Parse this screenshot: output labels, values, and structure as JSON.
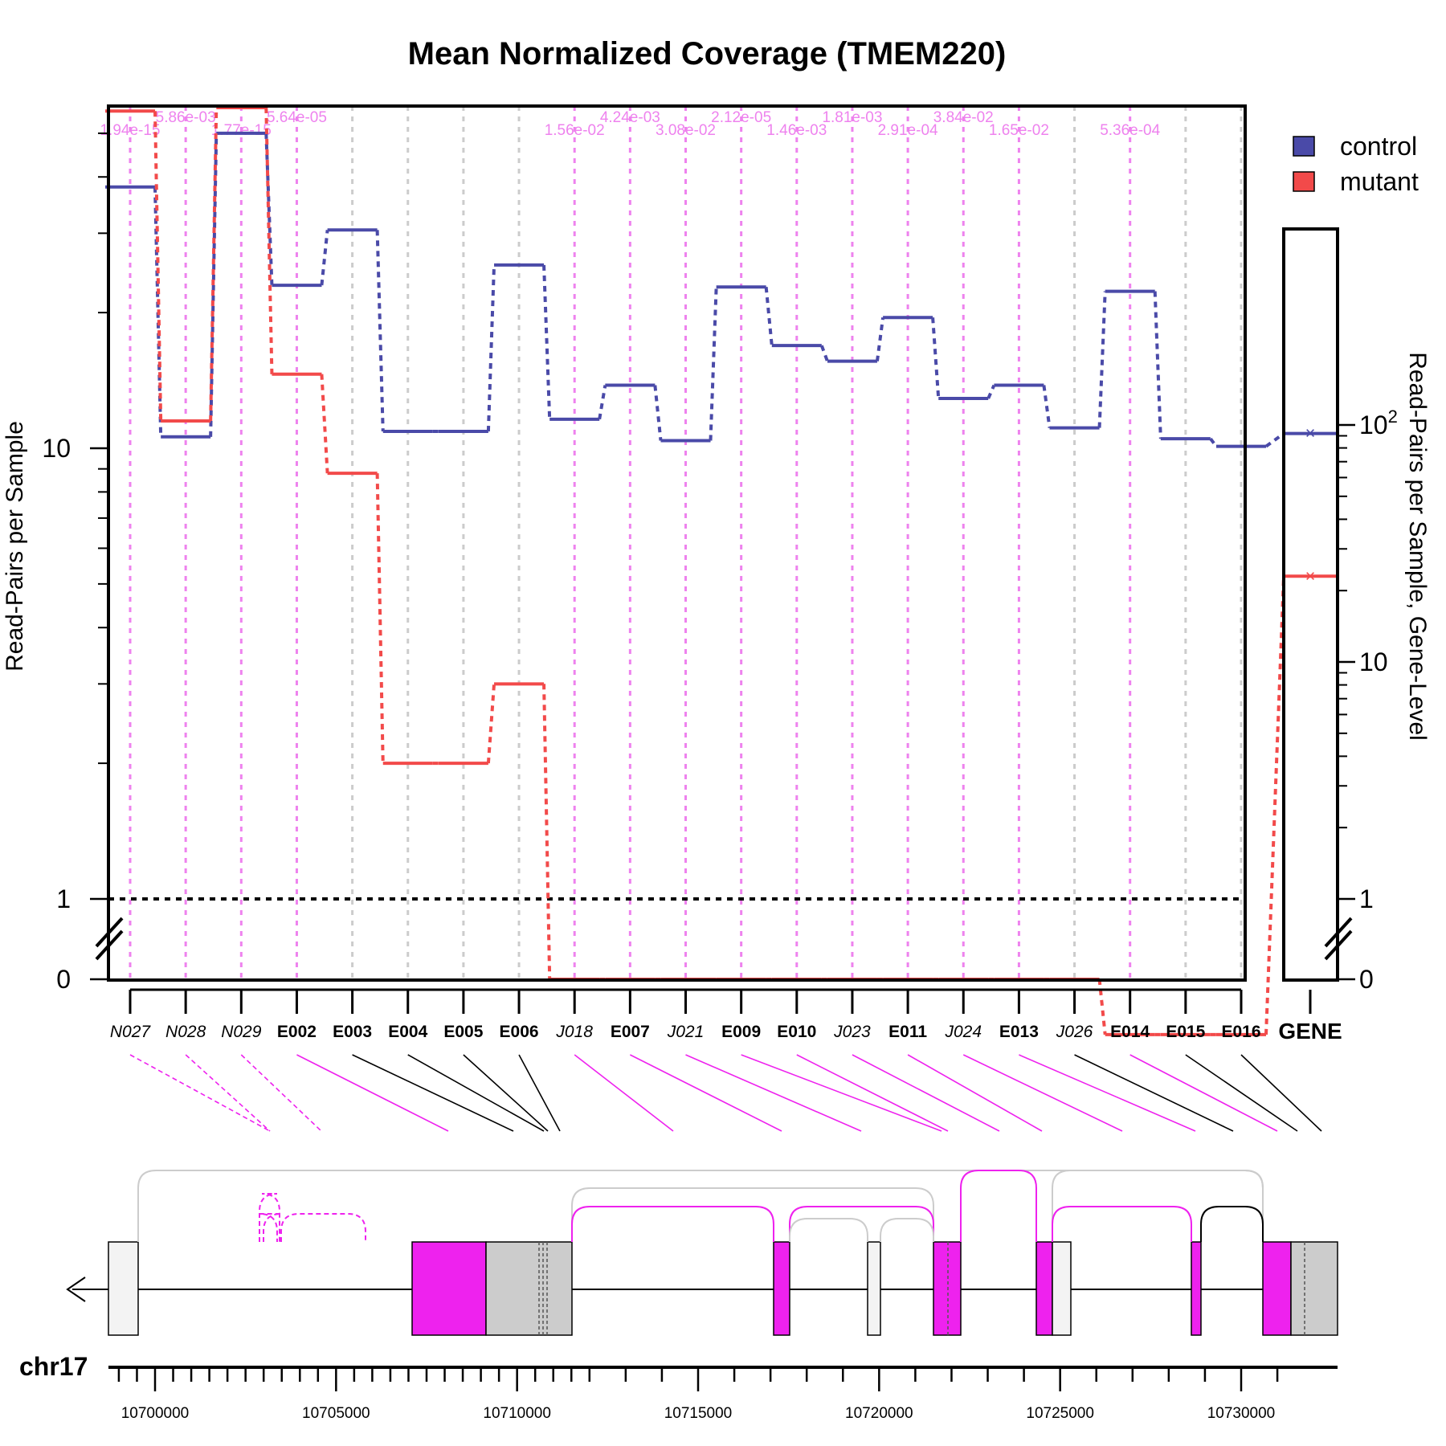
{
  "chart_data": {
    "type": "line",
    "title": "Mean Normalized Coverage (TMEM220)",
    "ylabel": "Read-Pairs per Sample",
    "ylabel_right": "Read-Pairs per Sample, Gene-Level",
    "yscale": "log with 0 below axis break",
    "ylim": [
      0,
      60
    ],
    "main_ticks": [
      {
        "label": "0",
        "value": 0
      },
      {
        "label": "1",
        "value": 1
      },
      {
        "label": "10",
        "value": 10
      }
    ],
    "gene_ticks": [
      {
        "label": "0",
        "value": 0
      },
      {
        "label": "1",
        "value": 1
      },
      {
        "label": "10",
        "value": 10
      },
      {
        "label": "10",
        "sup": "2",
        "value": 100
      }
    ],
    "grid": true,
    "legend": {
      "position": "top-right",
      "entries": [
        {
          "name": "control",
          "color": "#4a4aa8"
        },
        {
          "name": "mutant",
          "color": "#f24a4a"
        }
      ]
    },
    "one_line_color": "#000000",
    "significant_color": "#ee82ee",
    "nonsignificant_color": "#cccccc",
    "features": [
      {
        "id": "N027",
        "kind": "novel",
        "pvalue": "1.94e-15",
        "significant": true
      },
      {
        "id": "N028",
        "kind": "novel",
        "pvalue": "5.86e-03",
        "significant": true
      },
      {
        "id": "N029",
        "kind": "novel",
        "pvalue": "1.77e-15",
        "significant": true
      },
      {
        "id": "E002",
        "kind": "exon",
        "pvalue": "5.64e-05",
        "significant": true
      },
      {
        "id": "E003",
        "kind": "exon",
        "pvalue": "",
        "significant": false
      },
      {
        "id": "E004",
        "kind": "exon",
        "pvalue": "",
        "significant": false
      },
      {
        "id": "E005",
        "kind": "exon",
        "pvalue": "",
        "significant": false
      },
      {
        "id": "E006",
        "kind": "exon",
        "pvalue": "",
        "significant": false
      },
      {
        "id": "J018",
        "kind": "junction",
        "pvalue": "1.56e-02",
        "significant": true
      },
      {
        "id": "E007",
        "kind": "exon",
        "pvalue": "4.24e-03",
        "significant": true
      },
      {
        "id": "J021",
        "kind": "junction",
        "pvalue": "3.08e-02",
        "significant": true
      },
      {
        "id": "E009",
        "kind": "exon",
        "pvalue": "2.12e-05",
        "significant": true
      },
      {
        "id": "E010",
        "kind": "exon",
        "pvalue": "1.46e-03",
        "significant": true
      },
      {
        "id": "J023",
        "kind": "junction",
        "pvalue": "1.81e-03",
        "significant": true
      },
      {
        "id": "E011",
        "kind": "exon",
        "pvalue": "2.91e-04",
        "significant": true
      },
      {
        "id": "J024",
        "kind": "junction",
        "pvalue": "3.84e-02",
        "significant": true
      },
      {
        "id": "E013",
        "kind": "exon",
        "pvalue": "1.65e-02",
        "significant": true
      },
      {
        "id": "J026",
        "kind": "junction",
        "pvalue": "",
        "significant": false
      },
      {
        "id": "E014",
        "kind": "exon",
        "pvalue": "5.36e-04",
        "significant": true
      },
      {
        "id": "E015",
        "kind": "exon",
        "pvalue": "",
        "significant": false
      },
      {
        "id": "E016",
        "kind": "exon",
        "pvalue": "",
        "significant": false
      }
    ],
    "series": [
      {
        "name": "control",
        "values": [
          38,
          10.6,
          50,
          23,
          30.5,
          10.9,
          10.9,
          25.5,
          11.6,
          13.8,
          10.4,
          22.8,
          16.9,
          15.6,
          19.5,
          12.9,
          13.8,
          11.1,
          22.3,
          10.5,
          10.1
        ],
        "gene_level": 92
      },
      {
        "name": "mutant",
        "values": [
          56,
          11.5,
          57,
          14.6,
          8.8,
          2.0,
          2.0,
          3.0,
          0,
          0,
          0,
          0,
          0,
          0,
          0,
          0,
          0,
          0,
          0.5,
          0.5,
          0.5
        ],
        "gene_level": 23
      }
    ],
    "gene_label": "GENE",
    "chromosome": "chr17",
    "genomic_ticks": [
      "10700000",
      "10705000",
      "10710000",
      "10715000",
      "10720000",
      "10725000",
      "10730000"
    ]
  }
}
